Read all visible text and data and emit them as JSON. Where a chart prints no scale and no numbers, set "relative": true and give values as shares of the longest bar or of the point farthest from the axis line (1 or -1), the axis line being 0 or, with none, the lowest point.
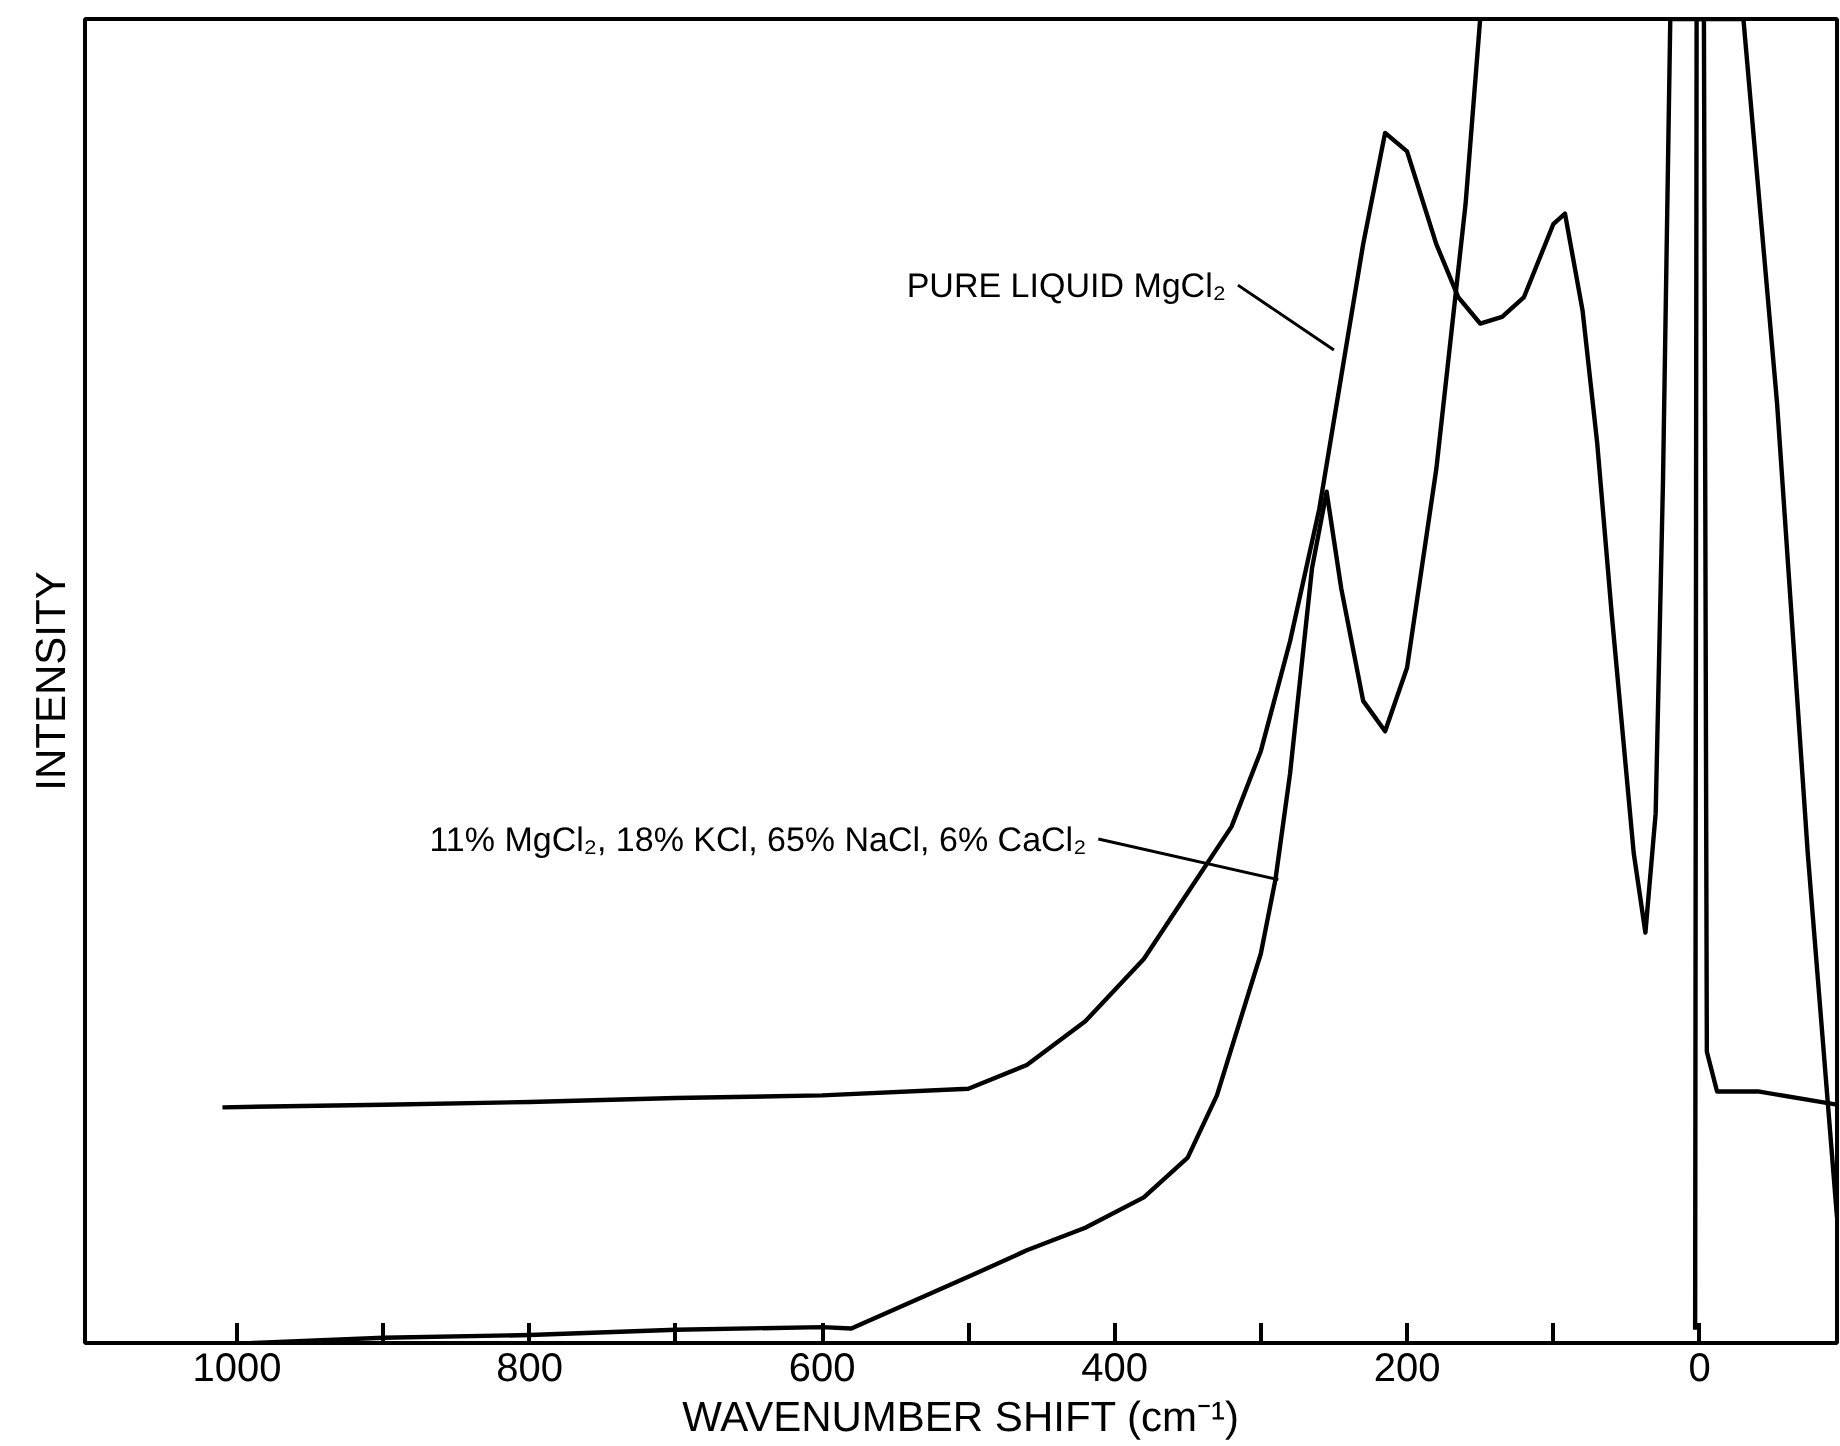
{
  "chart_data": {
    "type": "line",
    "relative": true,
    "xlabel": "WAVENUMBER SHIFT (cm⁻¹)",
    "ylabel": "INTENSITY",
    "xlim": [
      1104,
      -94
    ],
    "xticks": [
      1000,
      {
        "value": 900,
        "label": null
      },
      800,
      {
        "value": 700,
        "label": null
      },
      600,
      {
        "value": 500,
        "label": null
      },
      400,
      {
        "value": 300,
        "label": null
      },
      200,
      {
        "value": 100,
        "label": null
      },
      0
    ],
    "tick_labels": "x",
    "grid": false,
    "marker": "none",
    "line_style": "solid",
    "series": [
      {
        "color": "#000000",
        "x": [
          1010,
          900,
          800,
          700,
          600,
          500,
          460,
          420,
          380,
          350,
          320,
          300,
          280,
          260,
          245,
          230,
          215,
          200,
          180,
          165,
          150,
          135,
          120,
          100,
          92,
          80,
          70,
          60,
          45,
          37,
          30,
          25,
          20,
          -3,
          -5,
          -12,
          -40,
          -94
        ],
        "values": [
          0.178,
          0.18,
          0.182,
          0.185,
          0.187,
          0.192,
          0.21,
          0.243,
          0.29,
          0.34,
          0.39,
          0.447,
          0.53,
          0.63,
          0.73,
          0.83,
          0.914,
          0.9,
          0.83,
          0.79,
          0.77,
          0.775,
          0.79,
          0.845,
          0.853,
          0.78,
          0.68,
          0.55,
          0.37,
          0.31,
          0.4,
          0.65,
          1.0,
          1.0,
          0.22,
          0.19,
          0.19,
          0.18
        ]
      },
      {
        "color": "#000000",
        "x": [
          990,
          900,
          800,
          700,
          600,
          580,
          500,
          460,
          420,
          380,
          350,
          330,
          300,
          290,
          280,
          265,
          255,
          245,
          230,
          215,
          200,
          180,
          160,
          150,
          4,
          3,
          2,
          -30,
          -53,
          -74,
          -94
        ],
        "values": [
          0.0,
          0.004,
          0.006,
          0.01,
          0.012,
          0.011,
          0.05,
          0.07,
          0.087,
          0.11,
          0.14,
          0.187,
          0.294,
          0.35,
          0.43,
          0.585,
          0.643,
          0.57,
          0.485,
          0.462,
          0.51,
          0.66,
          0.86,
          1.0,
          null,
          0.01,
          1.0,
          1.0,
          0.71,
          0.37,
          0.095
        ]
      }
    ],
    "annotations": [
      {
        "text": "PURE LIQUID MgCl₂",
        "x": 250,
        "y": 0.75
      },
      {
        "text": "11% MgCl₂, 18% KCl, 65% NaCl, 6% CaCl₂",
        "x": 288,
        "y": 0.35
      }
    ]
  }
}
